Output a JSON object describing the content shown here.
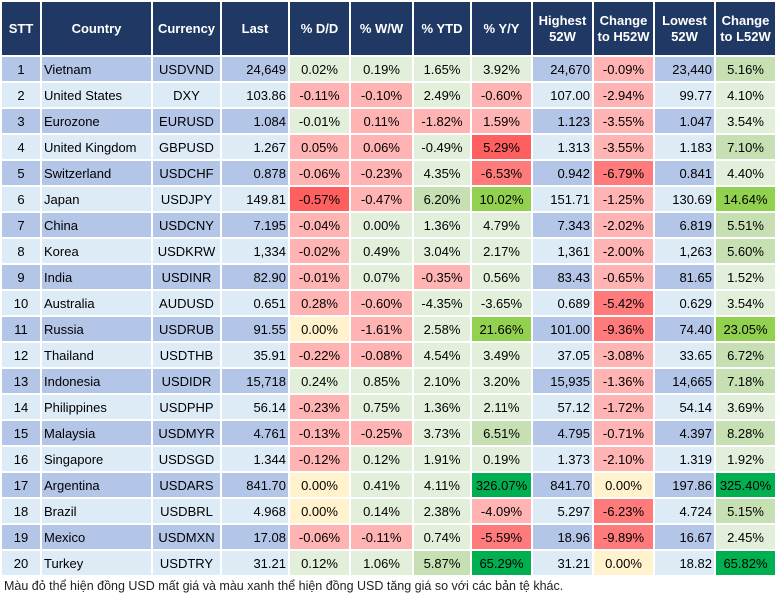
{
  "palette": {
    "row_dark": "#b4c6e7",
    "row_light": "#ddebf7",
    "header": "#203864",
    "g1": "#e2efda",
    "g2": "#c6e0b4",
    "g3": "#92d050",
    "g4": "#00b050",
    "r1": "#ffb3b3",
    "r2": "#ff7b7b",
    "r3": "#ff5f5f",
    "y": "#fff2cc"
  },
  "headers": [
    "STT",
    "Country",
    "Currency",
    "Last",
    "% D/D",
    "% W/W",
    "% YTD",
    "% Y/Y",
    "Highest 52W",
    "Change to H52W",
    "Lowest 52W",
    "Change to L52W"
  ],
  "rows": [
    {
      "stt": "1",
      "country": "Vietnam",
      "currency": "USDVND",
      "last": "24,649",
      "dd": "0.02%",
      "ww": "0.19%",
      "ytd": "1.65%",
      "yy": "3.92%",
      "high": "24,670",
      "ch": "-0.09%",
      "low": "23,440",
      "cl": "5.16%",
      "colors": [
        "g1",
        "g1",
        "g1",
        "g1",
        "r1",
        "g2"
      ]
    },
    {
      "stt": "2",
      "country": "United States",
      "currency": "DXY",
      "last": "103.86",
      "dd": "-0.11%",
      "ww": "-0.10%",
      "ytd": "2.49%",
      "yy": "-0.60%",
      "high": "107.00",
      "ch": "-2.94%",
      "low": "99.77",
      "cl": "4.10%",
      "colors": [
        "r1",
        "r1",
        "g1",
        "r1",
        "r1",
        "g1"
      ]
    },
    {
      "stt": "3",
      "country": "Eurozone",
      "currency": "EURUSD",
      "last": "1.084",
      "dd": "-0.01%",
      "ww": "0.11%",
      "ytd": "-1.82%",
      "yy": "1.59%",
      "high": "1.123",
      "ch": "-3.55%",
      "low": "1.047",
      "cl": "3.54%",
      "colors": [
        "g1",
        "r1",
        "r1",
        "r1",
        "r1",
        "g1"
      ]
    },
    {
      "stt": "4",
      "country": "United Kingdom",
      "currency": "GBPUSD",
      "last": "1.267",
      "dd": "0.05%",
      "ww": "0.06%",
      "ytd": "-0.49%",
      "yy": "5.29%",
      "high": "1.313",
      "ch": "-3.55%",
      "low": "1.183",
      "cl": "7.10%",
      "colors": [
        "r1",
        "r1",
        "g1",
        "r3",
        "r1",
        "g2"
      ]
    },
    {
      "stt": "5",
      "country": "Switzerland",
      "currency": "USDCHF",
      "last": "0.878",
      "dd": "-0.06%",
      "ww": "-0.23%",
      "ytd": "4.35%",
      "yy": "-6.53%",
      "high": "0.942",
      "ch": "-6.79%",
      "low": "0.841",
      "cl": "4.40%",
      "colors": [
        "r1",
        "r1",
        "g1",
        "r2",
        "r2",
        "g1"
      ]
    },
    {
      "stt": "6",
      "country": "Japan",
      "currency": "USDJPY",
      "last": "149.81",
      "dd": "-0.57%",
      "ww": "-0.47%",
      "ytd": "6.20%",
      "yy": "10.02%",
      "high": "151.71",
      "ch": "-1.25%",
      "low": "130.69",
      "cl": "14.64%",
      "colors": [
        "r3",
        "r1",
        "g2",
        "g3",
        "r1",
        "g3"
      ]
    },
    {
      "stt": "7",
      "country": "China",
      "currency": "USDCNY",
      "last": "7.195",
      "dd": "-0.04%",
      "ww": "0.00%",
      "ytd": "1.36%",
      "yy": "4.79%",
      "high": "7.343",
      "ch": "-2.02%",
      "low": "6.819",
      "cl": "5.51%",
      "colors": [
        "r1",
        "g1",
        "g1",
        "g1",
        "r1",
        "g2"
      ]
    },
    {
      "stt": "8",
      "country": "Korea",
      "currency": "USDKRW",
      "last": "1,334",
      "dd": "-0.02%",
      "ww": "0.49%",
      "ytd": "3.04%",
      "yy": "2.17%",
      "high": "1,361",
      "ch": "-2.00%",
      "low": "1,263",
      "cl": "5.60%",
      "colors": [
        "r1",
        "g1",
        "g1",
        "g1",
        "r1",
        "g2"
      ]
    },
    {
      "stt": "9",
      "country": "India",
      "currency": "USDINR",
      "last": "82.90",
      "dd": "-0.01%",
      "ww": "0.07%",
      "ytd": "-0.35%",
      "yy": "0.56%",
      "high": "83.43",
      "ch": "-0.65%",
      "low": "81.65",
      "cl": "1.52%",
      "colors": [
        "r1",
        "g1",
        "r1",
        "g1",
        "r1",
        "g1"
      ]
    },
    {
      "stt": "10",
      "country": "Australia",
      "currency": "AUDUSD",
      "last": "0.651",
      "dd": "0.28%",
      "ww": "-0.60%",
      "ytd": "-4.35%",
      "yy": "-3.65%",
      "high": "0.689",
      "ch": "-5.42%",
      "low": "0.629",
      "cl": "3.54%",
      "colors": [
        "r1",
        "r1",
        "g1",
        "g1",
        "r2",
        "g1"
      ]
    },
    {
      "stt": "11",
      "country": "Russia",
      "currency": "USDRUB",
      "last": "91.55",
      "dd": "0.00%",
      "ww": "-1.61%",
      "ytd": "2.58%",
      "yy": "21.66%",
      "high": "101.00",
      "ch": "-9.36%",
      "low": "74.40",
      "cl": "23.05%",
      "colors": [
        "y",
        "r1",
        "g1",
        "g3",
        "r2",
        "g3"
      ]
    },
    {
      "stt": "12",
      "country": "Thailand",
      "currency": "USDTHB",
      "last": "35.91",
      "dd": "-0.22%",
      "ww": "-0.08%",
      "ytd": "4.54%",
      "yy": "3.49%",
      "high": "37.05",
      "ch": "-3.08%",
      "low": "33.65",
      "cl": "6.72%",
      "colors": [
        "r1",
        "r1",
        "g1",
        "g1",
        "r1",
        "g2"
      ]
    },
    {
      "stt": "13",
      "country": "Indonesia",
      "currency": "USDIDR",
      "last": "15,718",
      "dd": "0.24%",
      "ww": "0.85%",
      "ytd": "2.10%",
      "yy": "3.20%",
      "high": "15,935",
      "ch": "-1.36%",
      "low": "14,665",
      "cl": "7.18%",
      "colors": [
        "g1",
        "g1",
        "g1",
        "g1",
        "r1",
        "g2"
      ]
    },
    {
      "stt": "14",
      "country": "Philippines",
      "currency": "USDPHP",
      "last": "56.14",
      "dd": "-0.23%",
      "ww": "0.75%",
      "ytd": "1.36%",
      "yy": "2.11%",
      "high": "57.12",
      "ch": "-1.72%",
      "low": "54.14",
      "cl": "3.69%",
      "colors": [
        "r1",
        "g1",
        "g1",
        "g1",
        "r1",
        "g1"
      ]
    },
    {
      "stt": "15",
      "country": "Malaysia",
      "currency": "USDMYR",
      "last": "4.761",
      "dd": "-0.13%",
      "ww": "-0.25%",
      "ytd": "3.73%",
      "yy": "6.51%",
      "high": "4.795",
      "ch": "-0.71%",
      "low": "4.397",
      "cl": "8.28%",
      "colors": [
        "r1",
        "r1",
        "g1",
        "g2",
        "r1",
        "g2"
      ]
    },
    {
      "stt": "16",
      "country": "Singapore",
      "currency": "USDSGD",
      "last": "1.344",
      "dd": "-0.12%",
      "ww": "0.12%",
      "ytd": "1.91%",
      "yy": "0.19%",
      "high": "1.373",
      "ch": "-2.10%",
      "low": "1.319",
      "cl": "1.92%",
      "colors": [
        "r1",
        "g1",
        "g1",
        "g1",
        "r1",
        "g1"
      ]
    },
    {
      "stt": "17",
      "country": "Argentina",
      "currency": "USDARS",
      "last": "841.70",
      "dd": "0.00%",
      "ww": "0.41%",
      "ytd": "4.11%",
      "yy": "326.07%",
      "high": "841.70",
      "ch": "0.00%",
      "low": "197.86",
      "cl": "325.40%",
      "colors": [
        "y",
        "g1",
        "g1",
        "g4",
        "y",
        "g4"
      ]
    },
    {
      "stt": "18",
      "country": "Brazil",
      "currency": "USDBRL",
      "last": "4.968",
      "dd": "0.00%",
      "ww": "0.14%",
      "ytd": "2.38%",
      "yy": "-4.09%",
      "high": "5.297",
      "ch": "-6.23%",
      "low": "4.724",
      "cl": "5.15%",
      "colors": [
        "y",
        "g1",
        "g1",
        "r1",
        "r2",
        "g2"
      ]
    },
    {
      "stt": "19",
      "country": "Mexico",
      "currency": "USDMXN",
      "last": "17.08",
      "dd": "-0.06%",
      "ww": "-0.11%",
      "ytd": "0.74%",
      "yy": "-5.59%",
      "high": "18.96",
      "ch": "-9.89%",
      "low": "16.67",
      "cl": "2.45%",
      "colors": [
        "r1",
        "r1",
        "g1",
        "r2",
        "r2",
        "g1"
      ]
    },
    {
      "stt": "20",
      "country": "Turkey",
      "currency": "USDTRY",
      "last": "31.21",
      "dd": "0.12%",
      "ww": "1.06%",
      "ytd": "5.87%",
      "yy": "65.29%",
      "high": "31.21",
      "ch": "0.00%",
      "low": "18.82",
      "cl": "65.82%",
      "colors": [
        "g1",
        "g1",
        "g2",
        "g4",
        "y",
        "g4"
      ]
    }
  ],
  "footnote": "Màu đỏ thể hiện đồng USD mất giá và màu xanh thể hiện đồng USD tăng giá so với các bản tệ khác."
}
